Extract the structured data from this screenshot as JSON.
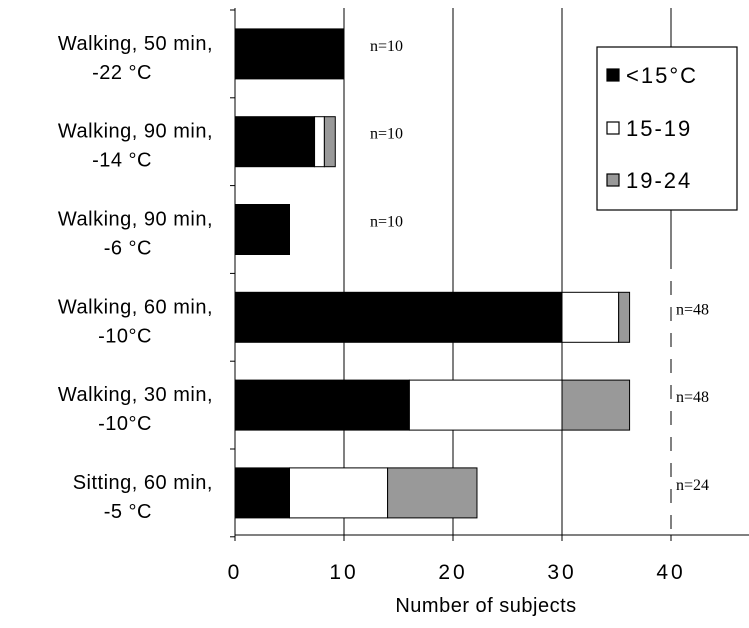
{
  "chart_data": {
    "type": "bar",
    "orientation": "horizontal",
    "stacked": true,
    "xlabel": "Number of subjects",
    "xlim": [
      0,
      47
    ],
    "xticks": [
      "0",
      "10",
      "20",
      "30",
      "40"
    ],
    "grid": true,
    "legend_position": "top-right",
    "categories": [
      {
        "line1": "Walking, 50 min,",
        "line2": "-22  °C"
      },
      {
        "line1": "Walking, 90 min,",
        "line2": "-14  °C"
      },
      {
        "line1": "Walking, 90 min,",
        "line2": "-6  °C"
      },
      {
        "line1": "Walking, 60 min,",
        "line2": "-10°C"
      },
      {
        "line1": "Walking, 30 min,",
        "line2": "-10°C"
      },
      {
        "line1": "Sitting, 60 min,",
        "line2": "-5  °C"
      }
    ],
    "n_labels": [
      "n=10",
      "n=10",
      "n=10",
      "n=48",
      "n=48",
      "n=24"
    ],
    "series": [
      {
        "name": "<15°C",
        "color": "#000000",
        "values": [
          10,
          7.3,
          5,
          30,
          16,
          5
        ]
      },
      {
        "name": "15-19",
        "color": "#ffffff",
        "values": [
          0,
          0.9,
          0,
          5.2,
          14,
          9
        ]
      },
      {
        "name": "19-24",
        "color": "#999999",
        "values": [
          0,
          1,
          0,
          1,
          6.2,
          8.2
        ]
      }
    ],
    "legend": [
      {
        "label": "<15°C"
      },
      {
        "label": "15-19"
      },
      {
        "label": "19-24"
      }
    ]
  }
}
